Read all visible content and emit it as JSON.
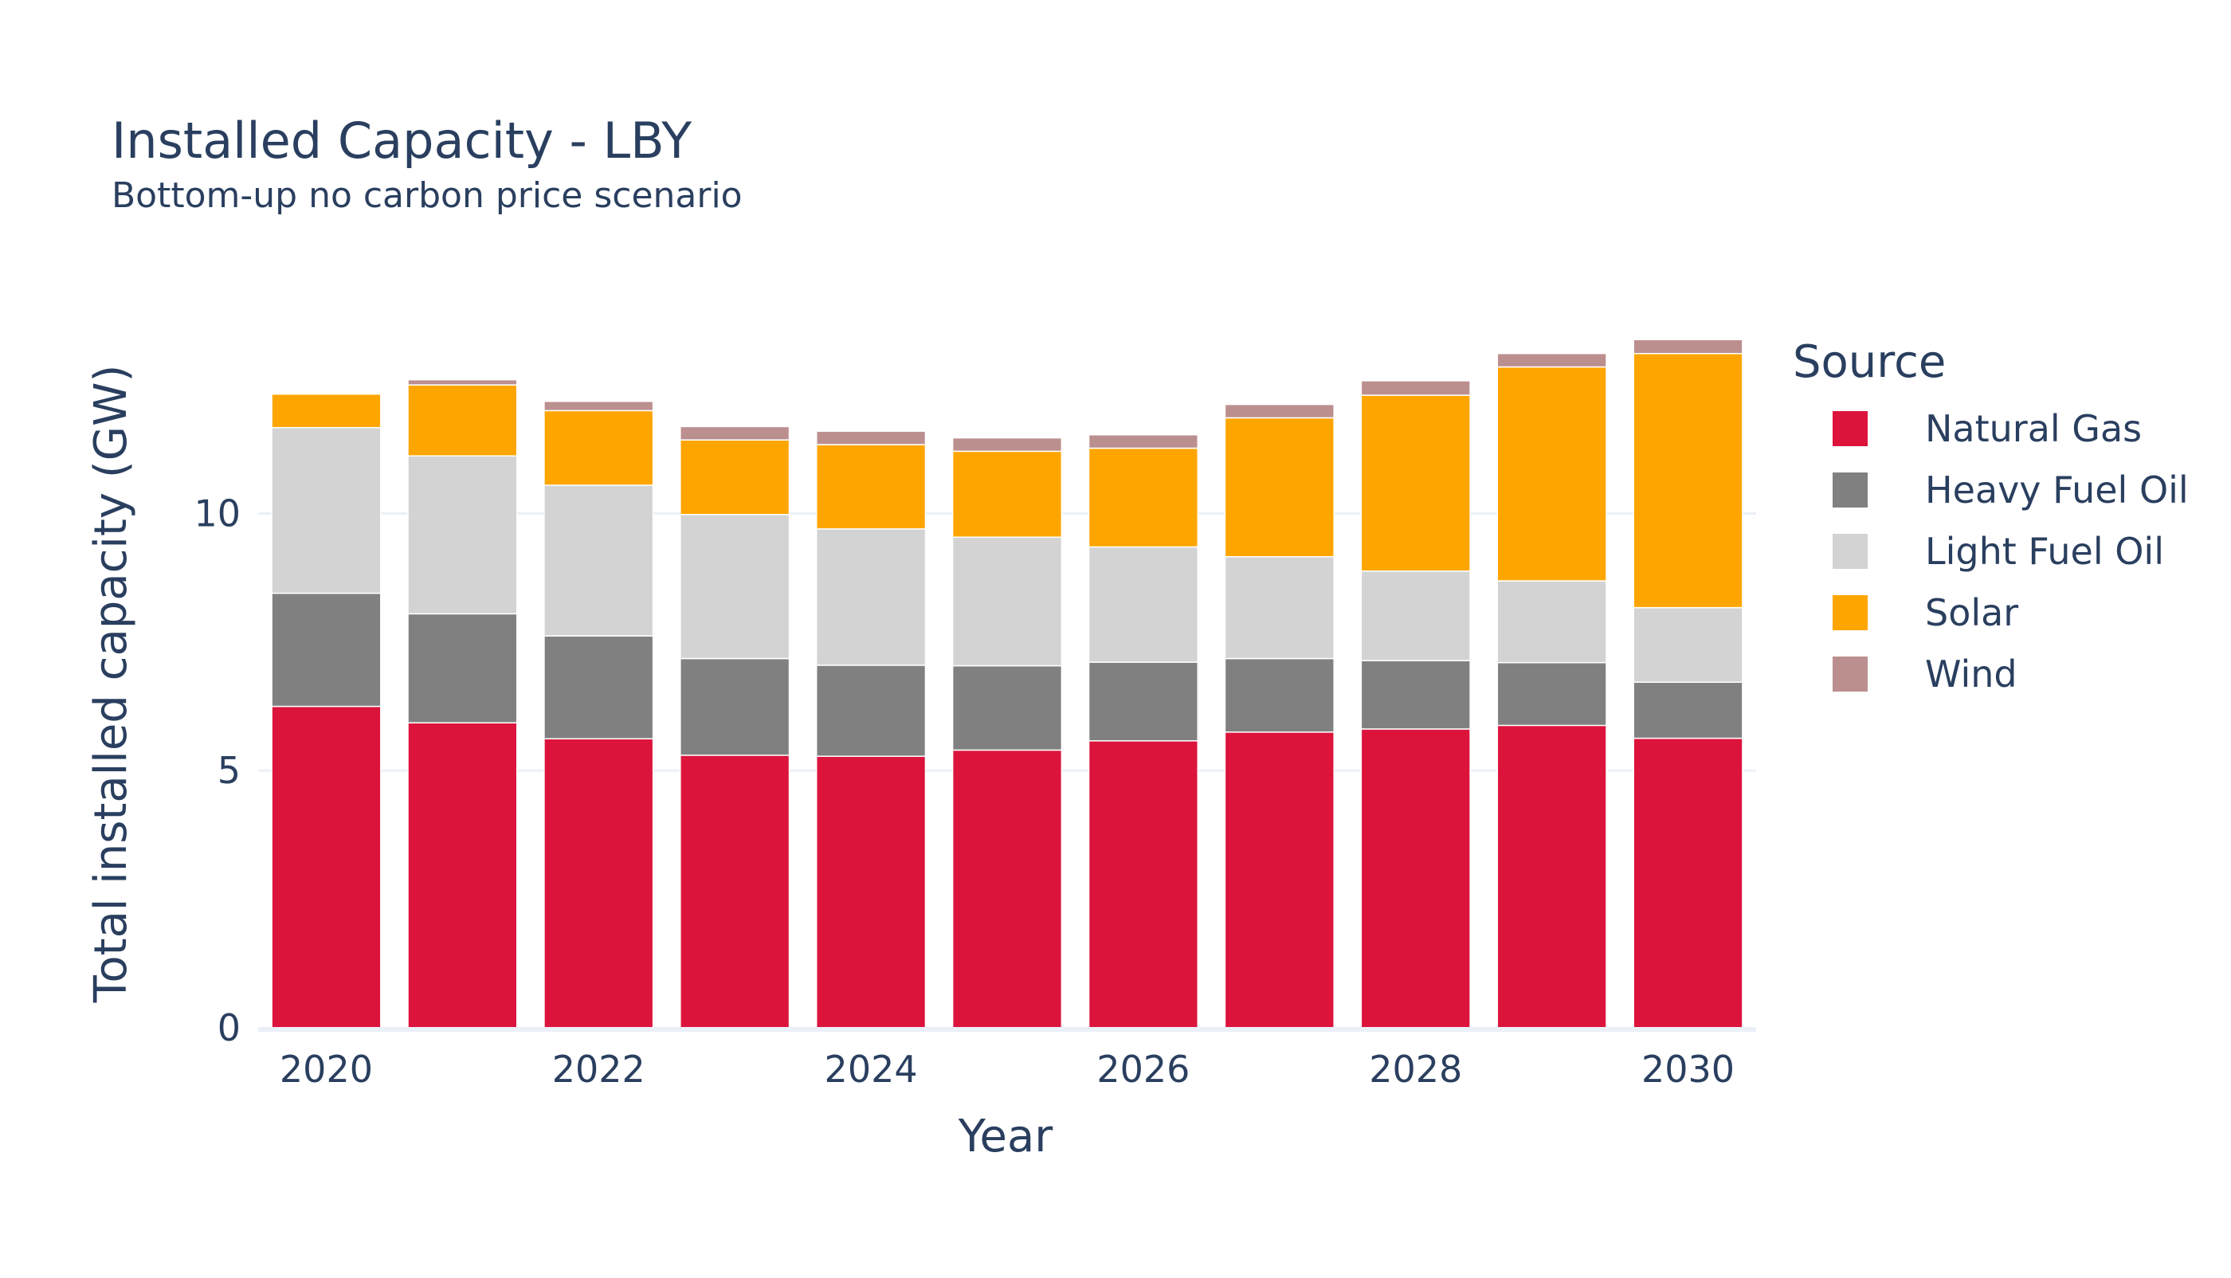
{
  "chart_data": {
    "type": "bar",
    "stacked": true,
    "title": "Installed Capacity - LBY",
    "subtitle": "Bottom-up no carbon price scenario",
    "xlabel": "Year",
    "ylabel": "Total installed capacity (GW)",
    "ylim": [
      0,
      13.4
    ],
    "grid": true,
    "legend_title": "Source",
    "legend_position": "right",
    "categories": [
      2020,
      2021,
      2022,
      2023,
      2024,
      2025,
      2026,
      2027,
      2028,
      2029,
      2030
    ],
    "x_ticks": [
      2020,
      2022,
      2024,
      2026,
      2028,
      2030
    ],
    "y_ticks": [
      0,
      5,
      10
    ],
    "series": [
      {
        "name": "Natural Gas",
        "color": "#dc143c",
        "values": [
          6.25,
          5.93,
          5.62,
          5.3,
          5.28,
          5.4,
          5.58,
          5.75,
          5.81,
          5.88,
          5.63
        ]
      },
      {
        "name": "Heavy Fuel Oil",
        "color": "#808080",
        "values": [
          2.2,
          2.12,
          2.0,
          1.88,
          1.77,
          1.64,
          1.53,
          1.43,
          1.33,
          1.22,
          1.09
        ]
      },
      {
        "name": "Light Fuel Oil",
        "color": "#d3d3d3",
        "values": [
          3.22,
          3.07,
          2.93,
          2.8,
          2.65,
          2.5,
          2.24,
          1.98,
          1.74,
          1.59,
          1.45
        ]
      },
      {
        "name": "Solar",
        "color": "#ffa500",
        "values": [
          0.65,
          1.38,
          1.45,
          1.45,
          1.64,
          1.67,
          1.92,
          2.7,
          3.42,
          4.16,
          4.94
        ]
      },
      {
        "name": "Wind",
        "color": "#bc8f8f",
        "values": [
          0.0,
          0.1,
          0.18,
          0.26,
          0.26,
          0.26,
          0.26,
          0.26,
          0.28,
          0.26,
          0.27
        ]
      }
    ]
  }
}
